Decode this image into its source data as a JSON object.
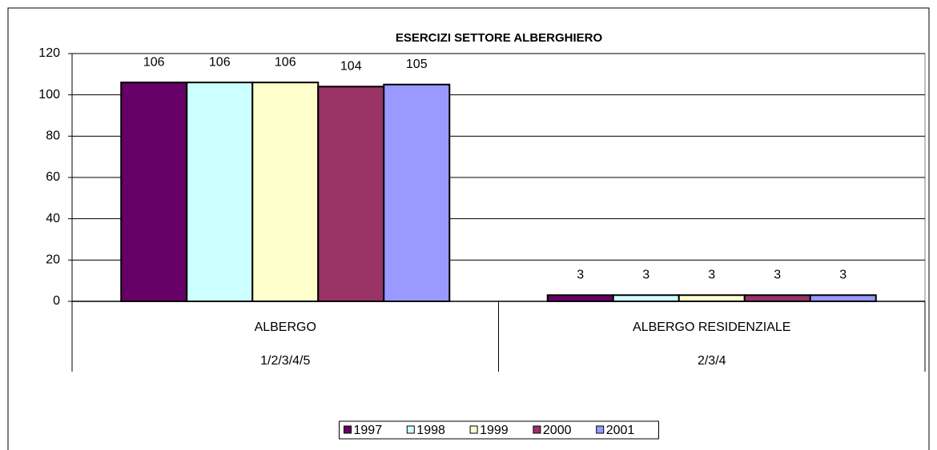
{
  "chart_data": {
    "type": "bar",
    "title": "ESERCIZI SETTORE ALBERGHIERO",
    "categories": [
      "ALBERGO",
      "ALBERGO RESIDENZIALE"
    ],
    "subcategories": [
      "1/2/3/4/5",
      "2/3/4"
    ],
    "series": [
      {
        "name": "1997",
        "color": "#660066",
        "values": [
          106,
          3
        ]
      },
      {
        "name": "1998",
        "color": "#ccffff",
        "values": [
          106,
          3
        ]
      },
      {
        "name": "1999",
        "color": "#ffffcc",
        "values": [
          106,
          3
        ]
      },
      {
        "name": "2000",
        "color": "#993366",
        "values": [
          104,
          3
        ]
      },
      {
        "name": "2001",
        "color": "#9999ff",
        "values": [
          105,
          3
        ]
      }
    ],
    "ylim": [
      0,
      120
    ],
    "yticks": [
      0,
      20,
      40,
      60,
      80,
      100,
      120
    ],
    "grid": true,
    "legend": "bottom"
  }
}
